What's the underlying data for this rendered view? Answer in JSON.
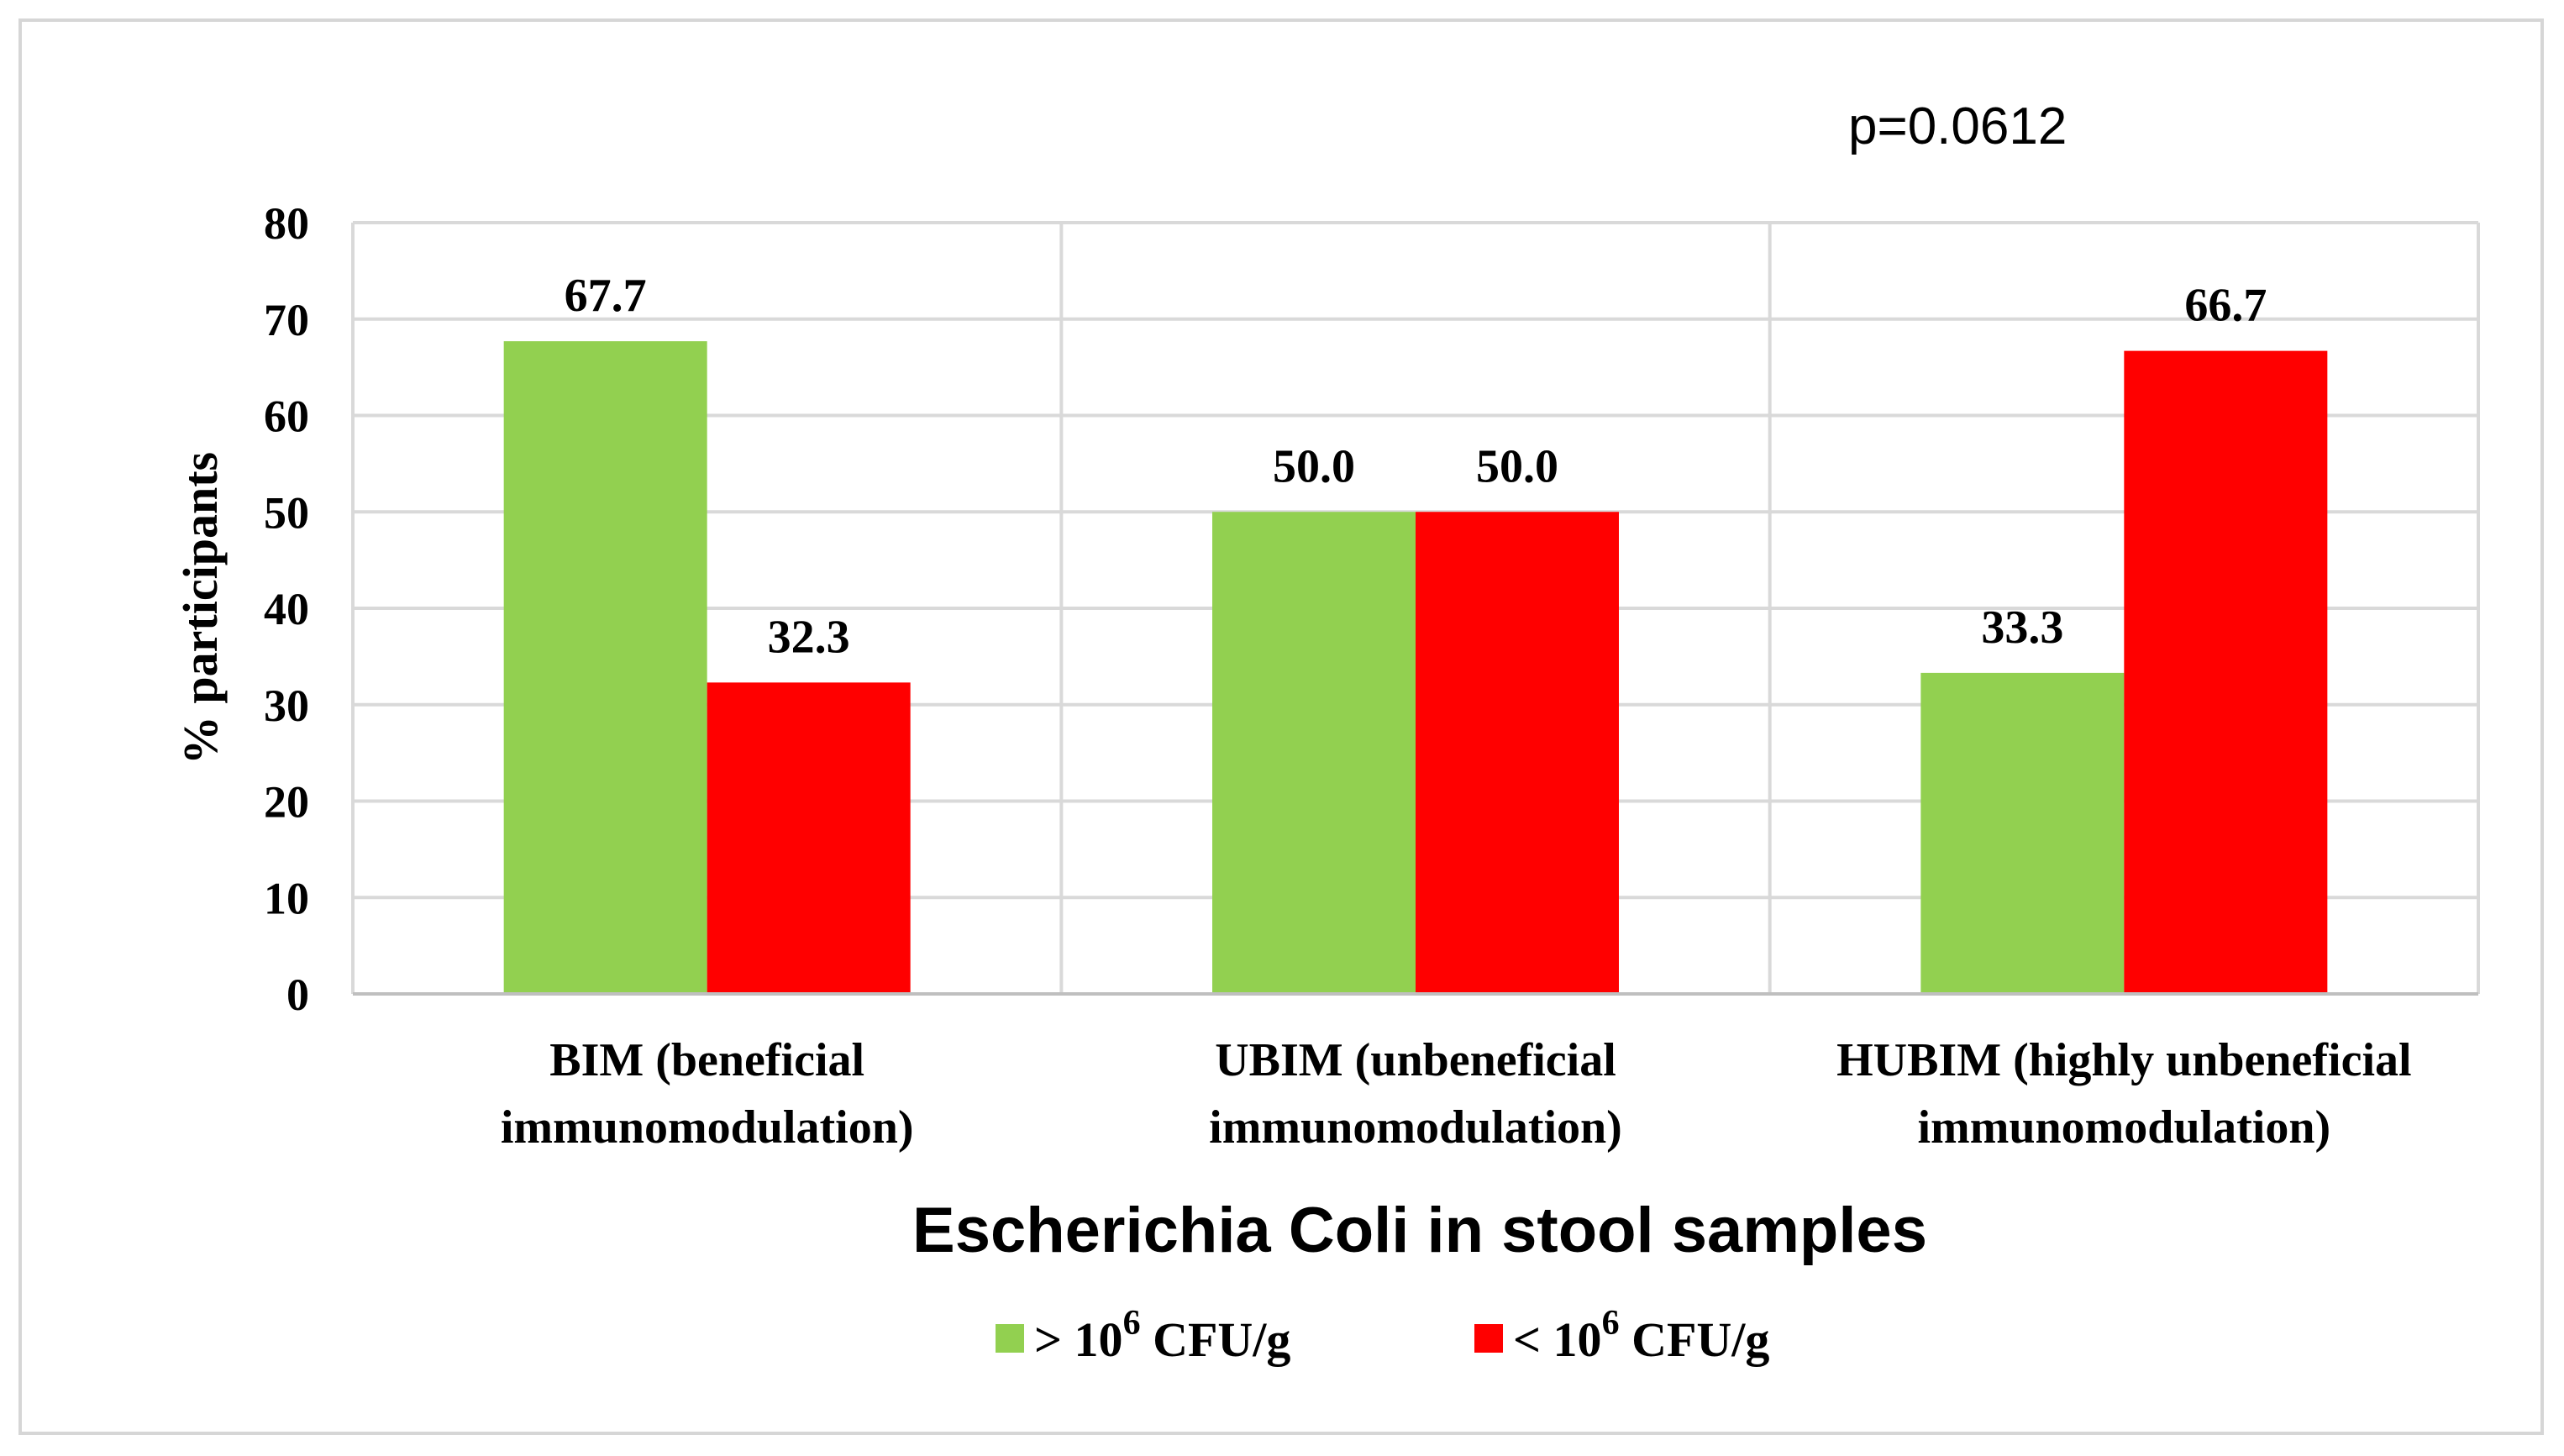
{
  "chart_data": {
    "type": "bar",
    "title": "Escherichia Coli in stool samples",
    "annotation": "p=0.0612",
    "xlabel": "",
    "ylabel": "% participants",
    "ylim": [
      0,
      80
    ],
    "ytick_step": 10,
    "grid": true,
    "legend_position": "bottom",
    "categories": [
      [
        "BIM (beneficial",
        "immunomodulation)"
      ],
      [
        "UBIM (unbeneficial",
        "immunomodulation)"
      ],
      [
        "HUBIM (highly unbeneficial",
        "immunomodulation)"
      ]
    ],
    "series": [
      {
        "name": "> 10",
        "superscript": "6",
        "unit": "CFU/g",
        "color": "#92d050",
        "values": [
          67.7,
          50.0,
          33.3
        ],
        "labels": [
          "67.7",
          "50.0",
          "33.3"
        ]
      },
      {
        "name": "< 10",
        "superscript": "6",
        "unit": "CFU/g",
        "color": "#ff0000",
        "values": [
          32.3,
          50.0,
          66.7
        ],
        "labels": [
          "32.3",
          "50.0",
          "66.7"
        ]
      }
    ]
  }
}
